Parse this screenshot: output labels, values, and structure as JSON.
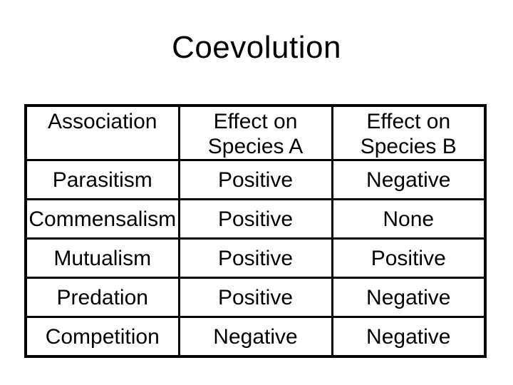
{
  "slide": {
    "title": "Coevolution",
    "background_color": "#ffffff",
    "text_color": "#000000",
    "table_border_color": "#000000"
  },
  "table": {
    "headers": [
      {
        "line1": "Association",
        "line2": ""
      },
      {
        "line1": "Effect on",
        "line2": "Species A"
      },
      {
        "line1": "Effect on",
        "line2": "Species B"
      }
    ],
    "rows": [
      {
        "association": "Parasitism",
        "effect_a": "Positive",
        "effect_b": "Negative"
      },
      {
        "association": "Commensalism",
        "effect_a": "Positive",
        "effect_b": "None"
      },
      {
        "association": "Mutualism",
        "effect_a": "Positive",
        "effect_b": "Positive"
      },
      {
        "association": "Predation",
        "effect_a": "Positive",
        "effect_b": "Negative"
      },
      {
        "association": "Competition",
        "effect_a": "Negative",
        "effect_b": "Negative"
      }
    ]
  }
}
